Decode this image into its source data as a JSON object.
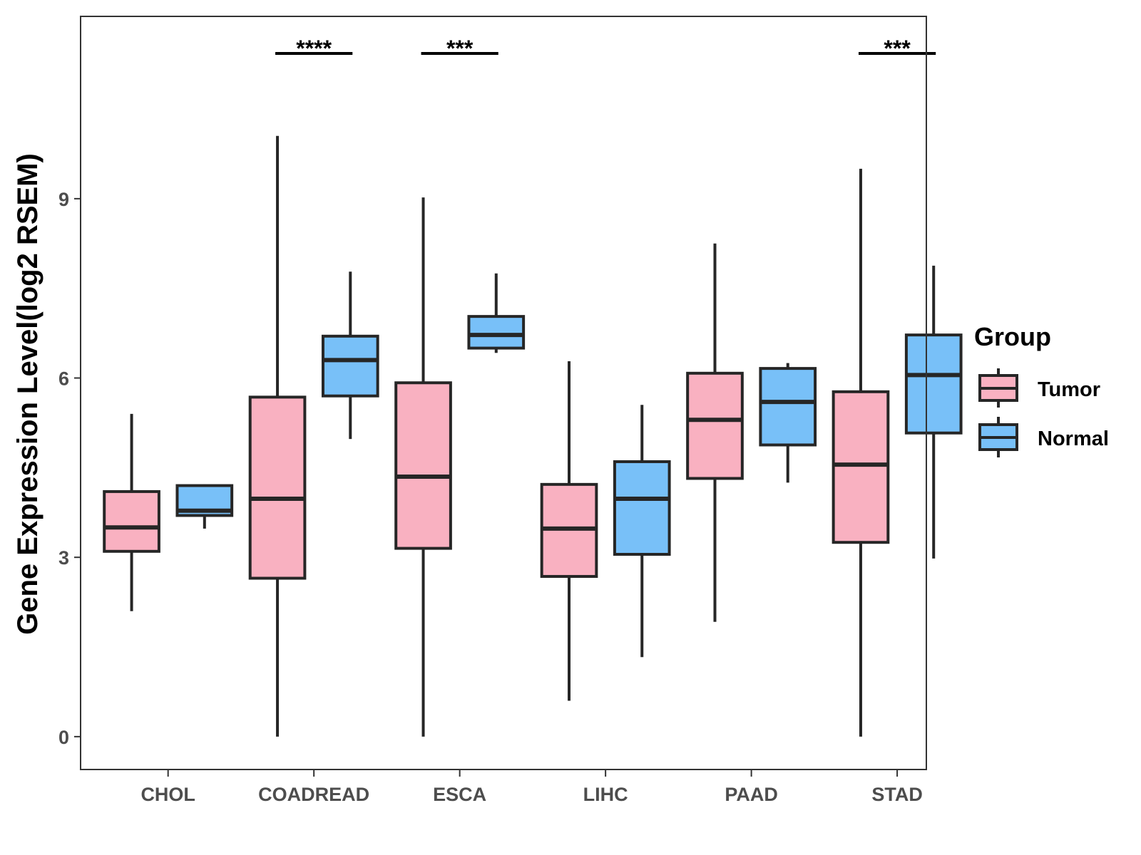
{
  "chart_data": {
    "type": "boxplot",
    "title": "",
    "xlabel": "",
    "ylabel": "Gene Expression Level(log2 RSEM)",
    "ylim": [
      -0.55,
      12.05
    ],
    "yticks": [
      0,
      3,
      6,
      9
    ],
    "ytick_labels": [
      "0",
      "3",
      "6",
      "9"
    ],
    "grid": false,
    "categories": [
      "CHOL",
      "COADREAD",
      "ESCA",
      "LIHC",
      "PAAD",
      "STAD"
    ],
    "legend": {
      "title": "Group",
      "position": "right"
    },
    "series": [
      {
        "name": "Tumor",
        "color": "#F9B1C1",
        "boxes": [
          {
            "category": "CHOL",
            "min": 2.1,
            "q1": 3.1,
            "median": 3.5,
            "q3": 4.1,
            "max": 5.4
          },
          {
            "category": "COADREAD",
            "min": 0.0,
            "q1": 2.65,
            "median": 3.98,
            "q3": 5.68,
            "max": 10.05
          },
          {
            "category": "ESCA",
            "min": 0.0,
            "q1": 3.15,
            "median": 4.35,
            "q3": 5.92,
            "max": 9.02
          },
          {
            "category": "LIHC",
            "min": 0.6,
            "q1": 2.68,
            "median": 3.48,
            "q3": 4.22,
            "max": 6.28
          },
          {
            "category": "PAAD",
            "min": 1.92,
            "q1": 4.32,
            "median": 5.3,
            "q3": 6.08,
            "max": 8.25
          },
          {
            "category": "STAD",
            "min": 0.0,
            "q1": 3.25,
            "median": 4.55,
            "q3": 5.77,
            "max": 9.5
          }
        ]
      },
      {
        "name": "Normal",
        "color": "#78C0F8",
        "boxes": [
          {
            "category": "CHOL",
            "min": 3.48,
            "q1": 3.7,
            "median": 3.78,
            "q3": 4.2,
            "max": 4.22
          },
          {
            "category": "COADREAD",
            "min": 4.98,
            "q1": 5.7,
            "median": 6.3,
            "q3": 6.7,
            "max": 7.78
          },
          {
            "category": "ESCA",
            "min": 6.42,
            "q1": 6.5,
            "median": 6.72,
            "q3": 7.03,
            "max": 7.75
          },
          {
            "category": "LIHC",
            "min": 1.33,
            "q1": 3.05,
            "median": 3.98,
            "q3": 4.6,
            "max": 5.55
          },
          {
            "category": "PAAD",
            "min": 4.25,
            "q1": 4.88,
            "median": 5.6,
            "q3": 6.16,
            "max": 6.25
          },
          {
            "category": "STAD",
            "min": 2.98,
            "q1": 5.08,
            "median": 6.05,
            "q3": 6.72,
            "max": 7.88
          }
        ]
      }
    ],
    "annotations": [
      {
        "category": "COADREAD",
        "text": "****"
      },
      {
        "category": "ESCA",
        "text": "***"
      },
      {
        "category": "STAD",
        "text": "***"
      }
    ]
  }
}
